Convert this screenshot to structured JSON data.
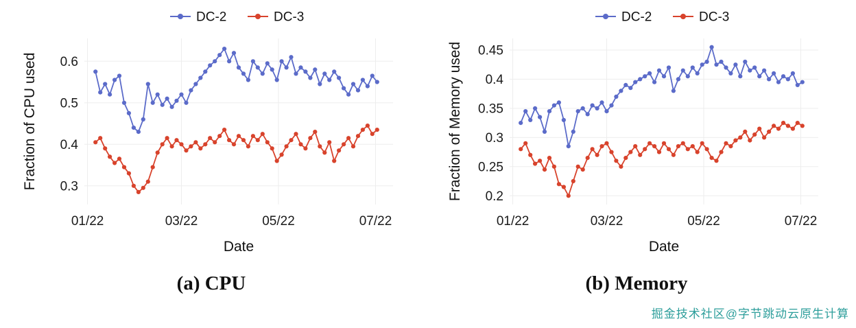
{
  "figures": [
    {
      "caption": "(a) CPU"
    },
    {
      "caption": "(b) Memory"
    }
  ],
  "watermark": {
    "text": "掘金技术社区@字节跳动云原生计算",
    "color": "#2d9e9b"
  },
  "colors": {
    "dc2": "#5b6bc9",
    "dc3": "#d8432c"
  },
  "chart_data": [
    {
      "type": "line",
      "title": "",
      "xlabel": "Date",
      "ylabel": "Fraction of CPU used",
      "x_unit": "days since 01/22",
      "xlim": [
        -2,
        192
      ],
      "ylim": [
        0.255,
        0.655
      ],
      "xticks": [
        0,
        59,
        120,
        181
      ],
      "xtick_labels": [
        "01/22",
        "03/22",
        "05/22",
        "07/22"
      ],
      "yticks": [
        0.3,
        0.4,
        0.5,
        0.6
      ],
      "ytick_labels": [
        "0.3",
        "0.4",
        "0.5",
        "0.6"
      ],
      "legend_position": "top",
      "grid": true,
      "x": [
        5,
        8,
        11,
        14,
        17,
        20,
        23,
        26,
        29,
        32,
        35,
        38,
        41,
        44,
        47,
        50,
        53,
        56,
        59,
        62,
        65,
        68,
        71,
        74,
        77,
        80,
        83,
        86,
        89,
        92,
        95,
        98,
        101,
        104,
        107,
        110,
        113,
        116,
        119,
        122,
        125,
        128,
        131,
        134,
        137,
        140,
        143,
        146,
        149,
        152,
        155,
        158,
        161,
        164,
        167,
        170,
        173,
        176,
        179,
        182
      ],
      "series": [
        {
          "name": "DC-2",
          "color": "#5b6bc9",
          "values": [
            0.575,
            0.525,
            0.545,
            0.52,
            0.555,
            0.565,
            0.5,
            0.475,
            0.44,
            0.43,
            0.46,
            0.545,
            0.5,
            0.52,
            0.495,
            0.51,
            0.49,
            0.505,
            0.52,
            0.5,
            0.53,
            0.545,
            0.56,
            0.575,
            0.59,
            0.6,
            0.615,
            0.63,
            0.6,
            0.62,
            0.585,
            0.57,
            0.555,
            0.6,
            0.585,
            0.57,
            0.595,
            0.58,
            0.555,
            0.6,
            0.585,
            0.61,
            0.57,
            0.585,
            0.575,
            0.56,
            0.58,
            0.545,
            0.57,
            0.555,
            0.575,
            0.56,
            0.535,
            0.52,
            0.545,
            0.53,
            0.555,
            0.54,
            0.565,
            0.55
          ]
        },
        {
          "name": "DC-3",
          "color": "#d8432c",
          "values": [
            0.405,
            0.415,
            0.39,
            0.37,
            0.355,
            0.365,
            0.345,
            0.33,
            0.3,
            0.285,
            0.295,
            0.31,
            0.345,
            0.38,
            0.4,
            0.415,
            0.395,
            0.41,
            0.4,
            0.385,
            0.395,
            0.405,
            0.39,
            0.4,
            0.415,
            0.405,
            0.42,
            0.435,
            0.41,
            0.4,
            0.42,
            0.41,
            0.395,
            0.42,
            0.41,
            0.425,
            0.405,
            0.39,
            0.36,
            0.375,
            0.395,
            0.41,
            0.425,
            0.4,
            0.39,
            0.415,
            0.43,
            0.395,
            0.38,
            0.405,
            0.36,
            0.385,
            0.4,
            0.415,
            0.395,
            0.42,
            0.435,
            0.445,
            0.425,
            0.435
          ]
        }
      ]
    },
    {
      "type": "line",
      "title": "",
      "xlabel": "Date",
      "ylabel": "Fraction of Memory used",
      "x_unit": "days since 01/22",
      "xlim": [
        -2,
        192
      ],
      "ylim": [
        0.185,
        0.47
      ],
      "xticks": [
        0,
        59,
        120,
        181
      ],
      "xtick_labels": [
        "01/22",
        "03/22",
        "05/22",
        "07/22"
      ],
      "yticks": [
        0.2,
        0.25,
        0.3,
        0.35,
        0.4,
        0.45
      ],
      "ytick_labels": [
        "0.2",
        "0.25",
        "0.3",
        "0.35",
        "0.4",
        "0.45"
      ],
      "legend_position": "top",
      "grid": true,
      "x": [
        5,
        8,
        11,
        14,
        17,
        20,
        23,
        26,
        29,
        32,
        35,
        38,
        41,
        44,
        47,
        50,
        53,
        56,
        59,
        62,
        65,
        68,
        71,
        74,
        77,
        80,
        83,
        86,
        89,
        92,
        95,
        98,
        101,
        104,
        107,
        110,
        113,
        116,
        119,
        122,
        125,
        128,
        131,
        134,
        137,
        140,
        143,
        146,
        149,
        152,
        155,
        158,
        161,
        164,
        167,
        170,
        173,
        176,
        179,
        182
      ],
      "series": [
        {
          "name": "DC-2",
          "color": "#5b6bc9",
          "values": [
            0.325,
            0.345,
            0.33,
            0.35,
            0.335,
            0.31,
            0.345,
            0.355,
            0.36,
            0.33,
            0.285,
            0.31,
            0.345,
            0.35,
            0.34,
            0.355,
            0.35,
            0.36,
            0.345,
            0.355,
            0.37,
            0.38,
            0.39,
            0.385,
            0.395,
            0.4,
            0.405,
            0.41,
            0.395,
            0.415,
            0.405,
            0.42,
            0.38,
            0.4,
            0.415,
            0.405,
            0.42,
            0.41,
            0.425,
            0.43,
            0.455,
            0.425,
            0.43,
            0.42,
            0.41,
            0.425,
            0.405,
            0.43,
            0.415,
            0.42,
            0.405,
            0.415,
            0.4,
            0.41,
            0.395,
            0.405,
            0.4,
            0.41,
            0.39,
            0.395
          ]
        },
        {
          "name": "DC-3",
          "color": "#d8432c",
          "values": [
            0.28,
            0.29,
            0.27,
            0.255,
            0.26,
            0.245,
            0.265,
            0.25,
            0.22,
            0.215,
            0.2,
            0.225,
            0.25,
            0.245,
            0.265,
            0.28,
            0.27,
            0.285,
            0.29,
            0.275,
            0.26,
            0.25,
            0.265,
            0.275,
            0.285,
            0.27,
            0.28,
            0.29,
            0.285,
            0.275,
            0.29,
            0.28,
            0.27,
            0.285,
            0.29,
            0.28,
            0.285,
            0.275,
            0.29,
            0.28,
            0.265,
            0.26,
            0.275,
            0.29,
            0.285,
            0.295,
            0.3,
            0.31,
            0.295,
            0.305,
            0.315,
            0.3,
            0.31,
            0.32,
            0.315,
            0.325,
            0.32,
            0.315,
            0.325,
            0.32
          ]
        }
      ]
    }
  ]
}
